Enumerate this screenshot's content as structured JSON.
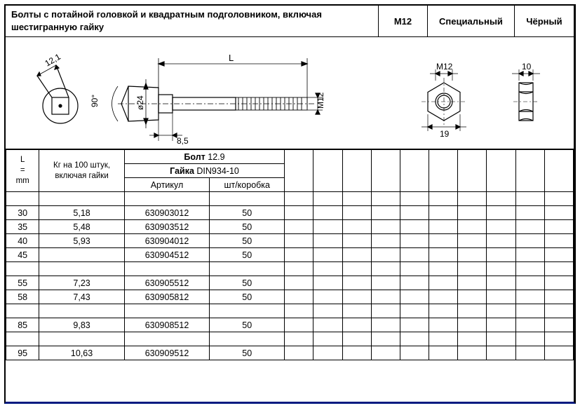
{
  "header": {
    "title": "Болты с потайной головкой и квадратным подголовником, включая шестигранную гайку",
    "size": "M12",
    "type": "Специальный",
    "color": "Чёрный"
  },
  "diagram": {
    "square_across": "12,1",
    "angle": "90°",
    "head_dia": "ø24",
    "length_label": "L",
    "shoulder": "8,5",
    "thread": "M12",
    "nut_flat": "M12",
    "nut_af": "19",
    "nut_thick": "10"
  },
  "spec_head": {
    "bolt_label": "Болт",
    "bolt_val": "12.9",
    "nut_label": "Гайка",
    "nut_val": "DIN934-10",
    "L_col": "L = mm",
    "kg_col": "Кг на 100 штук, включая гайки",
    "art_col": "Артикул",
    "qty_col": "шт/коробка"
  },
  "extra_cols": 8,
  "rows": [
    {
      "L": "",
      "kg": "",
      "art": "",
      "qty": ""
    },
    {
      "L": "30",
      "kg": "5,18",
      "art": "630903012",
      "qty": "50"
    },
    {
      "L": "35",
      "kg": "5,48",
      "art": "630903512",
      "qty": "50"
    },
    {
      "L": "40",
      "kg": "5,93",
      "art": "630904012",
      "qty": "50"
    },
    {
      "L": "45",
      "kg": "",
      "art": "630904512",
      "qty": "50"
    },
    {
      "L": "",
      "kg": "",
      "art": "",
      "qty": ""
    },
    {
      "L": "55",
      "kg": "7,23",
      "art": "630905512",
      "qty": "50"
    },
    {
      "L": "58",
      "kg": "7,43",
      "art": "630905812",
      "qty": "50"
    },
    {
      "L": "",
      "kg": "",
      "art": "",
      "qty": ""
    },
    {
      "L": "85",
      "kg": "9,83",
      "art": "630908512",
      "qty": "50"
    },
    {
      "L": "",
      "kg": "",
      "art": "",
      "qty": ""
    },
    {
      "L": "95",
      "kg": "10,63",
      "art": "630909512",
      "qty": "50"
    }
  ],
  "colors": {
    "line": "#000000",
    "bg": "#ffffff"
  }
}
